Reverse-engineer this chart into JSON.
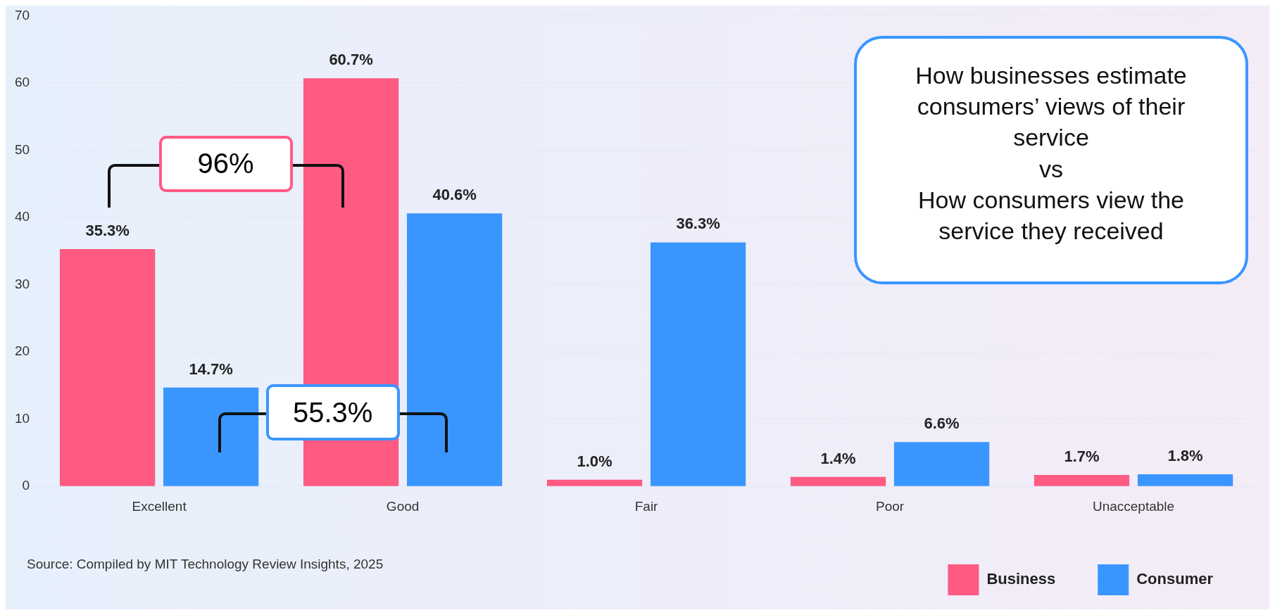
{
  "chart_data": {
    "type": "bar",
    "categories": [
      "Excellent",
      "Good",
      "Fair",
      "Poor",
      "Unacceptable"
    ],
    "series": [
      {
        "name": "Business",
        "color": "#ff5a82",
        "values": [
          35.3,
          60.7,
          1.0,
          1.4,
          1.7
        ],
        "value_labels": [
          "35.3%",
          "60.7%",
          "1.0%",
          "1.4%",
          "1.7%"
        ]
      },
      {
        "name": "Consumer",
        "color": "#3a96ff",
        "values": [
          14.7,
          40.6,
          36.3,
          6.6,
          1.8
        ],
        "value_labels": [
          "14.7%",
          "40.6%",
          "36.3%",
          "6.6%",
          "1.8%"
        ]
      }
    ],
    "ylim": [
      0,
      70
    ],
    "yticks": [
      0,
      10,
      20,
      30,
      40,
      50,
      60,
      70
    ],
    "grid": "y",
    "legend": "bottom right",
    "annotations": [
      "96%",
      "55.3%",
      "How businesses estimate consumers’ views of their service\nvs\nHow consumers view the service they received",
      "Source: Compiled by MIT Technology Review Insights, 2025"
    ]
  }
}
